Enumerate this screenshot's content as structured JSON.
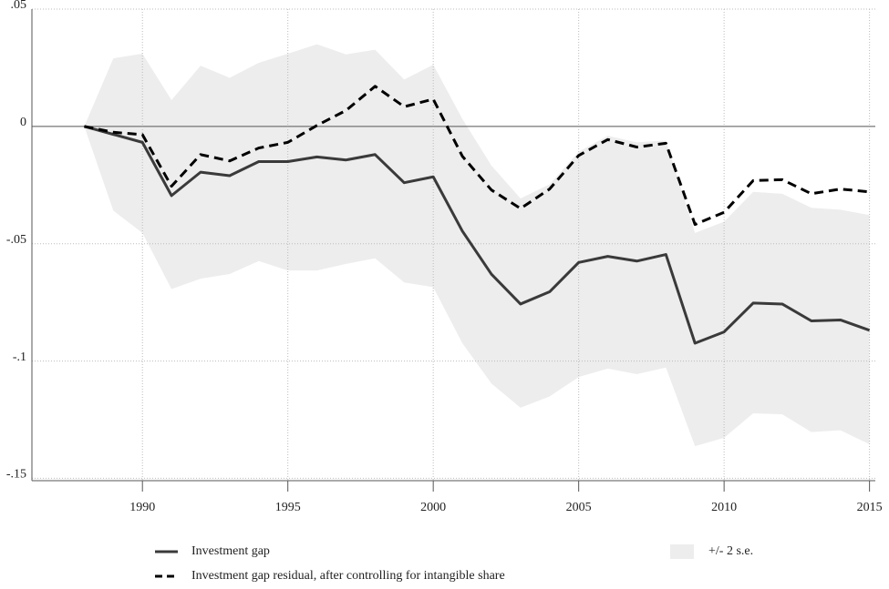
{
  "chart_data": {
    "type": "line",
    "x": [
      1988,
      1989,
      1990,
      1991,
      1992,
      1993,
      1994,
      1995,
      1996,
      1997,
      1998,
      1999,
      2000,
      2001,
      2002,
      2003,
      2004,
      2005,
      2006,
      2007,
      2008,
      2009,
      2010,
      2011,
      2012,
      2013,
      2014,
      2015
    ],
    "series": [
      {
        "name": "Investment gap",
        "color": "#3a3a3a",
        "dash": false,
        "values": [
          0,
          -0.0034,
          -0.0068,
          -0.0295,
          -0.0195,
          -0.021,
          -0.015,
          -0.015,
          -0.013,
          -0.0143,
          -0.012,
          -0.024,
          -0.0215,
          -0.0446,
          -0.063,
          -0.0757,
          -0.0705,
          -0.058,
          -0.0554,
          -0.0574,
          -0.0546,
          -0.0924,
          -0.0876,
          -0.0753,
          -0.0757,
          -0.0829,
          -0.0825,
          -0.0869
        ]
      },
      {
        "name": "Investment gap residual, after controlling for intangible share",
        "color": "#000000",
        "dash": true,
        "values": [
          0,
          -0.0025,
          -0.0035,
          -0.0255,
          -0.012,
          -0.0147,
          -0.0092,
          -0.0068,
          0.0004,
          0.0068,
          0.0171,
          0.0084,
          0.0116,
          -0.0127,
          -0.0271,
          -0.035,
          -0.0267,
          -0.0124,
          -0.0056,
          -0.0088,
          -0.0072,
          -0.0418,
          -0.0366,
          -0.0231,
          -0.0227,
          -0.0287,
          -0.0267,
          -0.0279
        ]
      }
    ],
    "band": {
      "name": "+/- 2 s.e.",
      "color": "#ededed",
      "upper": [
        0,
        0.029,
        0.031,
        0.0112,
        0.0259,
        0.0207,
        0.0271,
        0.031,
        0.035,
        0.0307,
        0.0327,
        0.02,
        0.0263,
        0.0032,
        -0.0167,
        -0.0307,
        -0.0247,
        -0.0108,
        -0.004,
        -0.0068,
        -0.006,
        -0.0454,
        -0.0406,
        -0.0279,
        -0.0287,
        -0.0347,
        -0.0355,
        -0.0378
      ],
      "lower": [
        0,
        -0.0359,
        -0.0454,
        -0.0693,
        -0.0649,
        -0.0629,
        -0.0574,
        -0.0614,
        -0.0614,
        -0.0586,
        -0.0562,
        -0.0665,
        -0.0685,
        -0.0924,
        -0.1096,
        -0.1199,
        -0.1151,
        -0.1068,
        -0.1032,
        -0.1056,
        -0.1028,
        -0.1363,
        -0.1327,
        -0.1223,
        -0.1227,
        -0.1303,
        -0.1295,
        -0.1355
      ]
    },
    "xlim": [
      1986.2,
      2015.2
    ],
    "xticks": [
      1990,
      1995,
      2000,
      2005,
      2010,
      2015
    ],
    "ylim": [
      -0.151,
      0.05
    ],
    "yticks": [
      {
        "value": 0.05,
        "label": ".05"
      },
      0,
      {
        "value": -0.05,
        "label": "-.05"
      },
      {
        "value": -0.1,
        "label": "-.1"
      },
      {
        "value": -0.15,
        "label": "-.15"
      }
    ],
    "grid": true
  }
}
